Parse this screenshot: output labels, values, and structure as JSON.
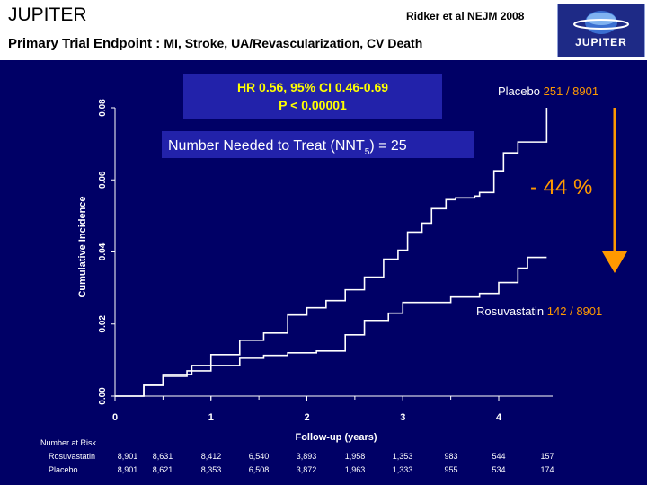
{
  "header": {
    "title": "JUPITER",
    "citation": "Ridker et al NEJM 2008",
    "subtitle_a": "Primary Trial Endpoint",
    "subtitle_b": " : ",
    "subtitle_c": "MI, Stroke, UA/Revascularization, CV Death",
    "logo_text": "JUPITER"
  },
  "colors": {
    "background": "#000066",
    "curve": "#ffffff",
    "highlight": "#ff9900",
    "box": "#2222aa"
  },
  "annotations": {
    "hr_line1": "HR 0.56, 95% CI 0.46-0.69",
    "hr_line2": "P < 0.00001",
    "nnt_prefix": "Number Needed to Treat (NNT",
    "nnt_sub": "5",
    "nnt_suffix": ") = 25",
    "reduction": "- 44 %",
    "placebo_label": "Placebo",
    "placebo_events": "251",
    "placebo_total": "/ 8901",
    "rosuva_label": "Rosuvastatin",
    "rosuva_events": "142",
    "rosuva_total": "/ 8901"
  },
  "chart_data": {
    "type": "line",
    "xlabel": "Follow-up (years)",
    "ylabel": "Cumulative Incidence",
    "xlim": [
      0,
      4.55
    ],
    "ylim": [
      0,
      0.08
    ],
    "x_ticks": [
      "0",
      "1",
      "2",
      "3",
      "4"
    ],
    "y_ticks": [
      "0.00",
      "0.02",
      "0.04",
      "0.06",
      "0.08"
    ],
    "series": [
      {
        "name": "Placebo",
        "points": [
          [
            0,
            0
          ],
          [
            0.3,
            0.003
          ],
          [
            0.5,
            0.006
          ],
          [
            0.8,
            0.0085
          ],
          [
            1.0,
            0.0115
          ],
          [
            1.3,
            0.0155
          ],
          [
            1.55,
            0.0175
          ],
          [
            1.8,
            0.0225
          ],
          [
            2.0,
            0.0245
          ],
          [
            2.2,
            0.0265
          ],
          [
            2.4,
            0.0295
          ],
          [
            2.6,
            0.033
          ],
          [
            2.8,
            0.038
          ],
          [
            2.95,
            0.0405
          ],
          [
            3.05,
            0.0455
          ],
          [
            3.2,
            0.048
          ],
          [
            3.3,
            0.052
          ],
          [
            3.45,
            0.0545
          ],
          [
            3.55,
            0.055
          ],
          [
            3.75,
            0.0555
          ],
          [
            3.8,
            0.0565
          ],
          [
            3.95,
            0.0625
          ],
          [
            4.05,
            0.0675
          ],
          [
            4.2,
            0.0705
          ],
          [
            4.5,
            0.073
          ],
          [
            4.5,
            0.08
          ]
        ]
      },
      {
        "name": "Rosuvastatin",
        "points": [
          [
            0,
            0
          ],
          [
            0.3,
            0.003
          ],
          [
            0.5,
            0.0055
          ],
          [
            0.75,
            0.007
          ],
          [
            1.0,
            0.0085
          ],
          [
            1.3,
            0.0105
          ],
          [
            1.55,
            0.0113
          ],
          [
            1.8,
            0.012
          ],
          [
            2.1,
            0.0125
          ],
          [
            2.4,
            0.017
          ],
          [
            2.6,
            0.021
          ],
          [
            2.85,
            0.023
          ],
          [
            3.0,
            0.026
          ],
          [
            3.3,
            0.026
          ],
          [
            3.5,
            0.0275
          ],
          [
            3.8,
            0.0285
          ],
          [
            4.0,
            0.0315
          ],
          [
            4.2,
            0.0355
          ],
          [
            4.3,
            0.0385
          ],
          [
            4.5,
            0.0385
          ]
        ]
      }
    ],
    "risk_table": {
      "title": "Number at Risk",
      "rows": [
        {
          "name": "Rosuvastatin",
          "values": [
            "8,901",
            "8,631",
            "8,412",
            "6,540",
            "3,893",
            "1,958",
            "1,353",
            "983",
            "544",
            "157"
          ]
        },
        {
          "name": "Placebo",
          "values": [
            "8,901",
            "8,621",
            "8,353",
            "6,508",
            "3,872",
            "1,963",
            "1,333",
            "955",
            "534",
            "174"
          ]
        }
      ]
    }
  }
}
